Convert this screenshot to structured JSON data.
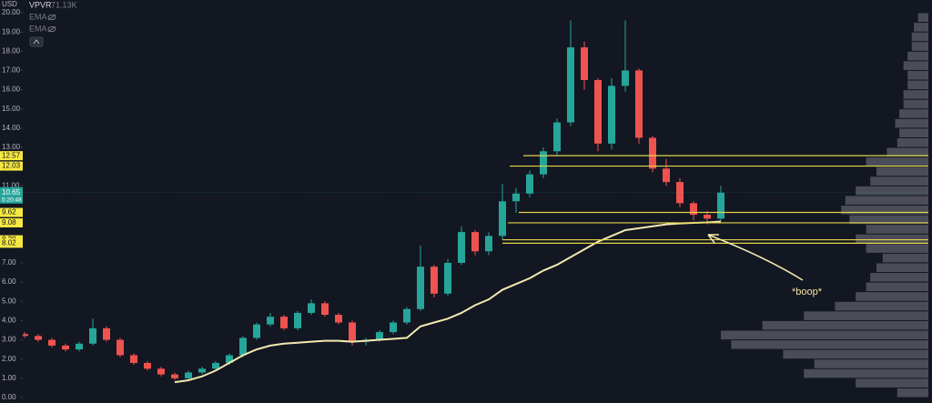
{
  "chart_data": {
    "type": "candlestick",
    "axis_unit": "USD",
    "header": {
      "indicator": "VPVR",
      "indicator_value": "71.13K",
      "overlays": [
        "EMA",
        "EMA"
      ]
    },
    "ylim": [
      0,
      20
    ],
    "yticks": [
      {
        "value": 0,
        "label": "0.00"
      },
      {
        "value": 1,
        "label": "1.00"
      },
      {
        "value": 2,
        "label": "2.00"
      },
      {
        "value": 3,
        "label": "3.00"
      },
      {
        "value": 4,
        "label": "4.00"
      },
      {
        "value": 5,
        "label": "5.00"
      },
      {
        "value": 6,
        "label": "6.00"
      },
      {
        "value": 7,
        "label": "7.00"
      },
      {
        "value": 9,
        "label": "9.00"
      },
      {
        "value": 11,
        "label": "11.00"
      },
      {
        "value": 13,
        "label": "13.00"
      },
      {
        "value": 14,
        "label": "14.00"
      },
      {
        "value": 15,
        "label": "15.00"
      },
      {
        "value": 16,
        "label": "16.00"
      },
      {
        "value": 17,
        "label": "17.00"
      },
      {
        "value": 18,
        "label": "18.00"
      },
      {
        "value": 19,
        "label": "19.00"
      },
      {
        "value": 20,
        "label": "20.00"
      }
    ],
    "up_color": "#26a69a",
    "down_color": "#ef5350",
    "open": [
      3.3,
      3.2,
      3.0,
      2.7,
      2.5,
      2.8,
      3.6,
      3.0,
      2.2,
      1.8,
      1.5,
      1.2,
      1.0,
      1.3,
      1.5,
      1.8,
      2.2,
      3.1,
      3.8,
      4.2,
      3.6,
      4.4,
      4.9,
      4.3,
      3.9,
      2.9,
      3.0,
      3.4,
      3.9,
      4.6,
      6.8,
      5.4,
      7.0,
      8.6,
      7.6,
      8.4,
      10.2,
      10.6,
      11.6,
      12.8,
      14.3,
      18.2,
      16.5,
      13.2,
      16.2,
      17.0,
      13.5,
      11.9,
      11.2,
      10.1,
      9.5,
      9.3
    ],
    "high": [
      3.4,
      3.3,
      3.1,
      2.8,
      2.9,
      4.1,
      3.7,
      3.1,
      2.3,
      1.9,
      1.6,
      1.3,
      1.4,
      1.6,
      1.9,
      2.3,
      3.2,
      3.9,
      4.4,
      4.3,
      4.5,
      5.1,
      5.0,
      4.4,
      4.0,
      3.1,
      3.5,
      4.0,
      4.7,
      7.9,
      6.9,
      7.2,
      8.9,
      8.7,
      8.6,
      11.1,
      10.9,
      11.8,
      13.0,
      14.5,
      19.6,
      18.5,
      16.6,
      16.6,
      19.6,
      17.1,
      13.6,
      12.4,
      11.4,
      10.2,
      9.7,
      11.0
    ],
    "low": [
      3.1,
      2.9,
      2.6,
      2.4,
      2.4,
      2.7,
      2.9,
      2.1,
      1.7,
      1.4,
      1.1,
      0.9,
      0.9,
      1.2,
      1.4,
      1.7,
      2.1,
      3.0,
      3.7,
      3.5,
      3.5,
      4.3,
      4.2,
      3.8,
      2.7,
      2.7,
      2.9,
      3.3,
      3.8,
      4.5,
      5.2,
      5.3,
      6.9,
      7.4,
      7.4,
      8.2,
      9.6,
      10.4,
      11.4,
      12.6,
      14.1,
      16.0,
      12.8,
      12.9,
      15.9,
      13.2,
      11.7,
      11.0,
      9.9,
      9.2,
      9.0,
      9.2
    ],
    "close": [
      3.2,
      3.0,
      2.7,
      2.5,
      2.8,
      3.6,
      3.0,
      2.2,
      1.8,
      1.5,
      1.2,
      1.0,
      1.3,
      1.5,
      1.8,
      2.2,
      3.1,
      3.8,
      4.2,
      3.6,
      4.4,
      4.9,
      4.3,
      3.9,
      2.9,
      3.0,
      3.4,
      3.9,
      4.6,
      6.8,
      5.4,
      7.0,
      8.6,
      7.6,
      8.4,
      10.2,
      10.6,
      11.6,
      12.8,
      14.3,
      18.2,
      16.5,
      13.2,
      16.2,
      17.0,
      13.5,
      11.9,
      11.2,
      10.1,
      9.5,
      9.3,
      10.65
    ],
    "trend_line": {
      "color": "#f3eab0",
      "values": [
        null,
        null,
        null,
        null,
        null,
        null,
        null,
        null,
        null,
        null,
        null,
        0.8,
        0.9,
        1.1,
        1.4,
        1.8,
        2.2,
        2.5,
        2.7,
        2.8,
        2.85,
        2.9,
        2.95,
        2.95,
        2.9,
        2.95,
        3.0,
        3.05,
        3.1,
        3.7,
        3.9,
        4.1,
        4.4,
        4.8,
        5.1,
        5.6,
        5.9,
        6.2,
        6.6,
        6.9,
        7.3,
        7.7,
        8.1,
        8.4,
        8.7,
        8.8,
        8.9,
        9.0,
        9.05,
        9.08,
        9.1,
        9.15
      ]
    },
    "levels": {
      "color": "#e3d34a",
      "values": [
        {
          "value": 12.57,
          "label": "12.57"
        },
        {
          "value": 12.03,
          "label": "12.03"
        },
        {
          "value": 9.62,
          "label": "9.62"
        },
        {
          "value": 9.08,
          "label": "9.08"
        },
        {
          "value": 8.2,
          "label": "8.20"
        },
        {
          "value": 8.02,
          "label": "8.02"
        }
      ]
    },
    "last_price": {
      "value": 10.65,
      "label": "10.65",
      "countdown": "5:20:48",
      "color": "#26a69a"
    },
    "volume_profile": {
      "color": "#5d606b",
      "bins": [
        0,
        0.5,
        1,
        1.5,
        2,
        2.5,
        3,
        3.5,
        4,
        4.5,
        5,
        5.5,
        6,
        6.5,
        7,
        7.5,
        8,
        8.5,
        9,
        9.5,
        10,
        10.5,
        11,
        11.5,
        12,
        12.5,
        13,
        13.5,
        14,
        14.5,
        15,
        15.5,
        16,
        16.5,
        17,
        17.5,
        18,
        18.5,
        19,
        19.5,
        20
      ],
      "volumes": [
        15,
        35,
        60,
        55,
        70,
        95,
        100,
        80,
        60,
        45,
        35,
        30,
        28,
        25,
        22,
        30,
        35,
        30,
        38,
        42,
        40,
        35,
        28,
        25,
        30,
        20,
        15,
        14,
        16,
        14,
        12,
        12,
        10,
        10,
        12,
        10,
        8,
        8,
        7,
        5
      ]
    },
    "annotation": "*boop*"
  }
}
